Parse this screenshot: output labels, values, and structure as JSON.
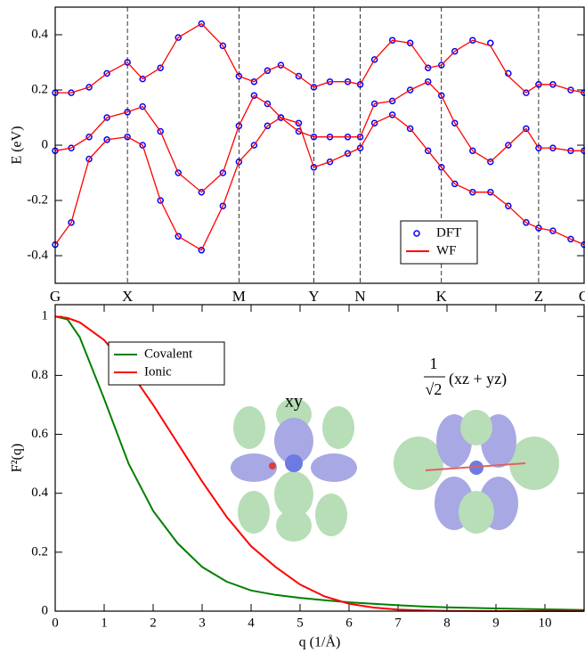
{
  "chart_data": [
    {
      "type": "bands",
      "ylabel": "E (eV)",
      "x": [
        0,
        18,
        38,
        58,
        81,
        98,
        118,
        138,
        164,
        188,
        206,
        223,
        238,
        253,
        273,
        290,
        308,
        328,
        342,
        358,
        378,
        398,
        418,
        433,
        448,
        468,
        488,
        508,
        528,
        542,
        558,
        578,
        593
      ],
      "xlim": [
        0,
        593
      ],
      "xticks": [
        {
          "value": 0,
          "label": "G"
        },
        {
          "value": 81,
          "label": "X"
        },
        {
          "value": 206,
          "label": "M"
        },
        {
          "value": 290,
          "label": "Y"
        },
        {
          "value": 342,
          "label": "N"
        },
        {
          "value": 433,
          "label": "K"
        },
        {
          "value": 542,
          "label": "Z"
        },
        {
          "value": 593,
          "label": "G"
        }
      ],
      "ylim": [
        -0.5,
        0.5
      ],
      "yticks": [
        -0.4,
        -0.2,
        0,
        0.2,
        0.4
      ],
      "legend": "lower right",
      "series": [
        {
          "name": "DFT",
          "marker": "circle",
          "color": "#0000ff",
          "values": [
            [
              -0.36,
              -0.28,
              -0.05,
              0.02,
              0.03,
              0.0,
              -0.2,
              -0.33,
              -0.38,
              -0.22,
              -0.06,
              0.0,
              0.07,
              0.1,
              0.08,
              -0.08,
              -0.06,
              -0.03,
              -0.01,
              0.08,
              0.11,
              0.06,
              -0.02,
              -0.08,
              -0.14,
              -0.17,
              -0.17,
              -0.22,
              -0.28,
              -0.3,
              -0.31,
              -0.34,
              -0.36
            ],
            [
              -0.02,
              -0.01,
              0.03,
              0.1,
              0.12,
              0.14,
              0.05,
              -0.1,
              -0.17,
              -0.1,
              0.07,
              0.18,
              0.15,
              0.1,
              0.05,
              0.03,
              0.03,
              0.03,
              0.03,
              0.15,
              0.16,
              0.2,
              0.23,
              0.18,
              0.08,
              -0.02,
              -0.06,
              0.0,
              0.06,
              -0.01,
              -0.01,
              -0.02,
              -0.02
            ],
            [
              0.19,
              0.19,
              0.21,
              0.26,
              0.3,
              0.24,
              0.28,
              0.39,
              0.44,
              0.36,
              0.25,
              0.23,
              0.27,
              0.29,
              0.25,
              0.21,
              0.23,
              0.23,
              0.22,
              0.31,
              0.38,
              0.37,
              0.28,
              0.29,
              0.34,
              0.38,
              0.37,
              0.26,
              0.19,
              0.22,
              0.22,
              0.2,
              0.19
            ]
          ]
        },
        {
          "name": "WF",
          "marker": "line",
          "color": "#ff0000",
          "values": [
            [
              -0.36,
              -0.28,
              -0.05,
              0.02,
              0.03,
              0.0,
              -0.2,
              -0.33,
              -0.38,
              -0.22,
              -0.06,
              0.0,
              0.07,
              0.1,
              0.08,
              -0.08,
              -0.06,
              -0.03,
              -0.01,
              0.08,
              0.11,
              0.06,
              -0.02,
              -0.08,
              -0.14,
              -0.17,
              -0.17,
              -0.22,
              -0.28,
              -0.3,
              -0.31,
              -0.34,
              -0.36
            ],
            [
              -0.02,
              -0.01,
              0.03,
              0.1,
              0.12,
              0.14,
              0.05,
              -0.1,
              -0.17,
              -0.1,
              0.07,
              0.18,
              0.15,
              0.1,
              0.05,
              0.03,
              0.03,
              0.03,
              0.03,
              0.15,
              0.16,
              0.2,
              0.23,
              0.18,
              0.08,
              -0.02,
              -0.06,
              0.0,
              0.06,
              -0.01,
              -0.01,
              -0.02,
              -0.02
            ],
            [
              0.19,
              0.19,
              0.21,
              0.26,
              0.3,
              0.24,
              0.28,
              0.39,
              0.44,
              0.36,
              0.25,
              0.23,
              0.27,
              0.29,
              0.25,
              0.21,
              0.23,
              0.23,
              0.22,
              0.31,
              0.38,
              0.37,
              0.28,
              0.29,
              0.34,
              0.38,
              0.36,
              0.25,
              0.19,
              0.22,
              0.22,
              0.2,
              0.19
            ]
          ]
        }
      ]
    },
    {
      "type": "line",
      "xlabel": "q (1/Å)",
      "ylabel": "F²(q)",
      "annotations": [
        "xy",
        "1",
        "√2",
        "(xz + yz)"
      ],
      "x": [
        0,
        0.25,
        0.5,
        1,
        1.5,
        2,
        2.5,
        3,
        3.5,
        4,
        4.5,
        5,
        5.5,
        6,
        6.5,
        7,
        7.5,
        8,
        9,
        10,
        10.8
      ],
      "xlim": [
        0,
        10.8
      ],
      "xticks": [
        0,
        1,
        2,
        3,
        4,
        5,
        6,
        7,
        8,
        9,
        10
      ],
      "ylim": [
        0,
        1.04
      ],
      "yticks": [
        0,
        0.2,
        0.4,
        0.6,
        0.8,
        1
      ],
      "legend": "upper left",
      "series": [
        {
          "name": "Covalent",
          "color": "#008000",
          "values": [
            1,
            0.99,
            0.93,
            0.72,
            0.5,
            0.34,
            0.23,
            0.15,
            0.1,
            0.07,
            0.055,
            0.045,
            0.037,
            0.03,
            0.025,
            0.02,
            0.016,
            0.013,
            0.009,
            0.006,
            0.004
          ]
        },
        {
          "name": "Ionic",
          "color": "#ff0000",
          "values": [
            1,
            0.995,
            0.98,
            0.92,
            0.82,
            0.7,
            0.57,
            0.44,
            0.32,
            0.22,
            0.15,
            0.09,
            0.05,
            0.025,
            0.012,
            0.005,
            0.002,
            0.001,
            0,
            0,
            0
          ]
        }
      ]
    }
  ]
}
